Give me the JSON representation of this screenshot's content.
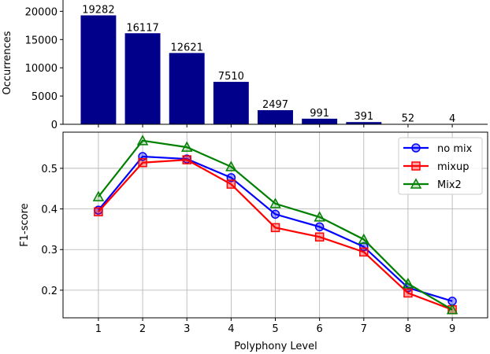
{
  "chart_data": [
    {
      "type": "bar",
      "ylabel": "Occurrences",
      "categories": [
        "1",
        "2",
        "3",
        "4",
        "5",
        "6",
        "7",
        "8",
        "9"
      ],
      "values": [
        19282,
        16117,
        12621,
        7510,
        2497,
        991,
        391,
        52,
        4
      ],
      "data_labels": [
        "19282",
        "16117",
        "12621",
        "7510",
        "2497",
        "991",
        "391",
        "52",
        "4"
      ],
      "yticks": [
        0,
        5000,
        10000,
        15000,
        20000
      ],
      "ytick_labels": [
        "0",
        "5000",
        "10000",
        "15000",
        "20000"
      ],
      "ylim": [
        0,
        22000
      ],
      "color": "#00008b"
    },
    {
      "type": "line",
      "xlabel": "Polyphony Level",
      "ylabel": "F1-score",
      "x": [
        1,
        2,
        3,
        4,
        5,
        6,
        7,
        8,
        9
      ],
      "xtick_labels": [
        "1",
        "2",
        "3",
        "4",
        "5",
        "6",
        "7",
        "8",
        "9"
      ],
      "yticks": [
        0.2,
        0.3,
        0.4,
        0.5
      ],
      "ytick_labels": [
        "0.2",
        "0.3",
        "0.4",
        "0.5"
      ],
      "ylim": [
        0.132,
        0.589
      ],
      "xlim": [
        0.2,
        9.8
      ],
      "grid": true,
      "legend": "top-right",
      "series": [
        {
          "name": "no mix",
          "marker": "circle",
          "color": "#0000ff",
          "values": [
            0.397,
            0.529,
            0.523,
            0.477,
            0.387,
            0.356,
            0.307,
            0.206,
            0.173
          ]
        },
        {
          "name": "mixup",
          "marker": "square",
          "color": "#ff0000",
          "values": [
            0.393,
            0.514,
            0.521,
            0.461,
            0.354,
            0.331,
            0.294,
            0.193,
            0.152
          ]
        },
        {
          "name": "Mix2",
          "marker": "triangle",
          "color": "#008000",
          "values": [
            0.43,
            0.568,
            0.552,
            0.504,
            0.413,
            0.38,
            0.325,
            0.216,
            0.152
          ]
        }
      ]
    }
  ]
}
